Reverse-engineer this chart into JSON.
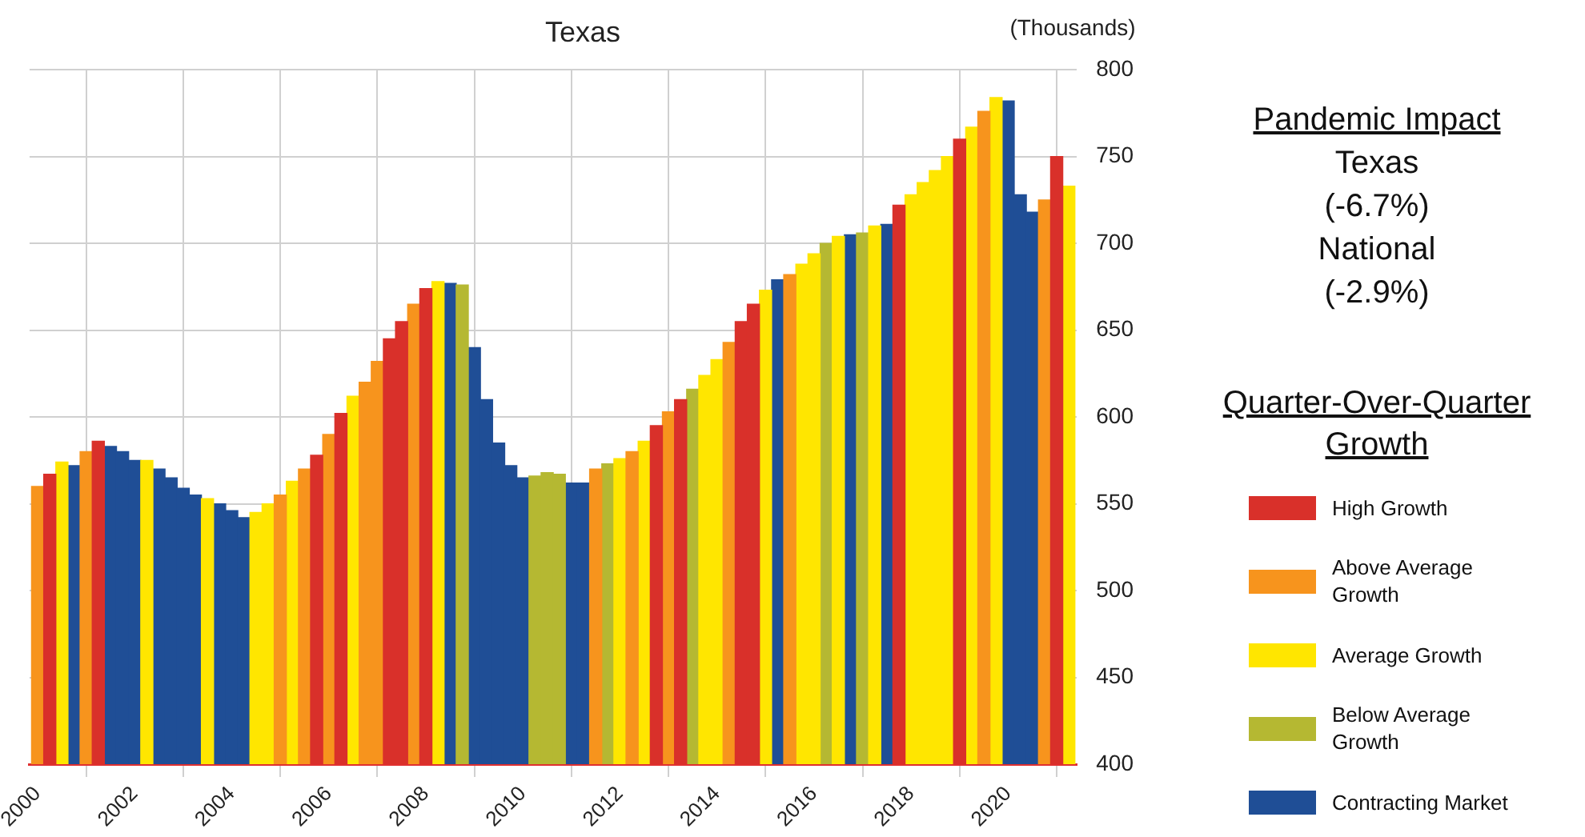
{
  "chart_data": {
    "type": "bar",
    "title": "Texas",
    "ylabel": "(Thousands)",
    "legend_title": "Quarter-Over-Quarter Growth",
    "legend": "right",
    "annotations": [
      "Pandemic Impact",
      "Texas",
      "(-6.7%)",
      "National",
      "(-2.9%)"
    ],
    "xlim": [
      "1999-11",
      "2021-06"
    ],
    "xticks": [
      "2000",
      "2002",
      "2004",
      "2006",
      "2008",
      "2010",
      "2012",
      "2014",
      "2016",
      "2018",
      "2020"
    ],
    "ylim": [
      400,
      800
    ],
    "yticks": [
      400,
      450,
      500,
      550,
      600,
      650,
      700,
      750,
      800
    ],
    "grid": true,
    "series": [
      {
        "name": "High Growth",
        "color": "#d9302a",
        "x": [
          "2000-04",
          "2001-04",
          "2005-10",
          "2006-04",
          "2007-04",
          "2007-07",
          "2008-01",
          "2012-10",
          "2013-04",
          "2014-07",
          "2014-10",
          "2017-10",
          "2019-01",
          "2021-01"
        ],
        "values": [
          567,
          586,
          578,
          602,
          645,
          655,
          674,
          595,
          610,
          655,
          665,
          722,
          760,
          750
        ]
      },
      {
        "name": "Above Average Growth",
        "color": "#f7941d",
        "x": [
          "2000-01",
          "2001-01",
          "2005-01",
          "2005-07",
          "2006-01",
          "2006-10",
          "2007-01",
          "2007-10",
          "2011-07",
          "2012-04",
          "2013-01",
          "2014-04",
          "2015-07",
          "2019-07",
          "2020-10"
        ],
        "values": [
          560,
          580,
          555,
          570,
          590,
          620,
          632,
          665,
          570,
          580,
          603,
          643,
          682,
          776,
          725
        ]
      },
      {
        "name": "Average Growth",
        "color": "#ffe600",
        "x": [
          "2000-07",
          "2002-04",
          "2003-07",
          "2004-07",
          "2004-10",
          "2005-04",
          "2006-07",
          "2008-04",
          "2012-01",
          "2012-07",
          "2013-10",
          "2014-01",
          "2015-01",
          "2015-10",
          "2016-01",
          "2016-07",
          "2017-04",
          "2018-01",
          "2018-04",
          "2018-07",
          "2018-10",
          "2019-04",
          "2019-10",
          "2021-04"
        ],
        "values": [
          574,
          575,
          553,
          545,
          550,
          563,
          612,
          678,
          576,
          586,
          624,
          633,
          673,
          688,
          694,
          704,
          710,
          728,
          735,
          742,
          750,
          767,
          784,
          733
        ]
      },
      {
        "name": "Below Average Growth",
        "color": "#b5b832",
        "x": [
          "2008-10",
          "2010-04",
          "2010-07",
          "2010-10",
          "2011-10",
          "2013-07",
          "2016-04",
          "2017-01"
        ],
        "values": [
          676,
          566,
          568,
          567,
          573,
          616,
          700,
          706
        ]
      },
      {
        "name": "Contracting Market",
        "color": "#1f4e96",
        "x": [
          "2000-10",
          "2001-07",
          "2001-10",
          "2002-01",
          "2002-07",
          "2002-10",
          "2003-01",
          "2003-04",
          "2003-10",
          "2004-01",
          "2004-04",
          "2008-07",
          "2009-01",
          "2009-04",
          "2009-07",
          "2009-10",
          "2010-01",
          "2011-01",
          "2011-04",
          "2015-04",
          "2016-10",
          "2017-07",
          "2020-01",
          "2020-04",
          "2020-07"
        ],
        "values": [
          572,
          583,
          580,
          575,
          570,
          565,
          559,
          555,
          550,
          546,
          542,
          677,
          640,
          610,
          585,
          572,
          565,
          562,
          562,
          679,
          705,
          711,
          782,
          728,
          718
        ]
      }
    ]
  }
}
